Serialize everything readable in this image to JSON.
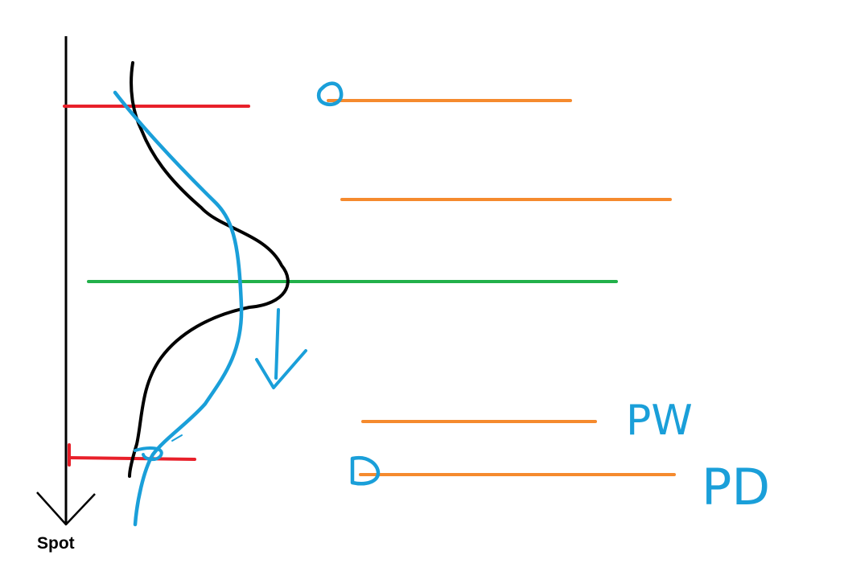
{
  "axis": {
    "label": "Spot"
  },
  "annotations": {
    "pw_label": "PW",
    "pd_label": "PD"
  },
  "colors": {
    "axis": "#000000",
    "price_curve": "#000000",
    "blue_curve": "#1a9fd9",
    "red_line": "#e8202a",
    "green_line": "#22b04a",
    "orange_line": "#f58a2e"
  }
}
